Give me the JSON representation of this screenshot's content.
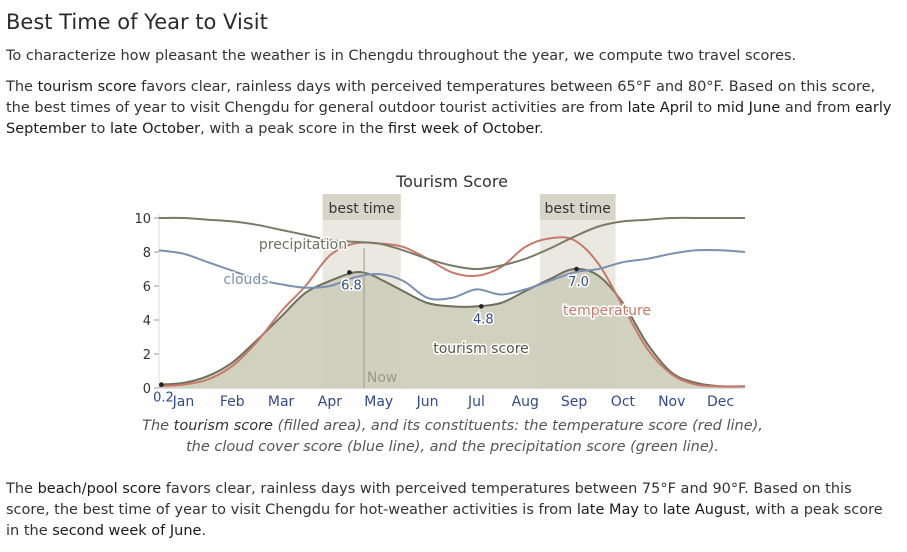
{
  "section": {
    "title": "Best Time of Year to Visit",
    "intro": "To characterize how pleasant the weather is in Chengdu throughout the year, we compute two travel scores.",
    "tourism_paragraph": {
      "t1": "The ",
      "k1": "tourism score",
      "t2": " favors clear, rainless days with perceived temperatures between 65°F and 80°F. Based on this score, the best times of year to visit Chengdu for general outdoor tourist activities are from ",
      "k2": "late April",
      "t3": " to ",
      "k3": "mid June",
      "t4": " and from ",
      "k4": "early September",
      "t5": " to ",
      "k5": "late October",
      "t6": ", with a peak score in the ",
      "k6": "first week of October",
      "t7": "."
    },
    "caption": {
      "c1": "The ",
      "c2": "tourism score",
      "c3": " (filled area), and its constituents: the temperature score (red line), the cloud cover score (blue line), and the precipitation score (green line)."
    },
    "beach_paragraph": {
      "t1": "The ",
      "k1": "beach/pool score",
      "t2": " favors clear, rainless days with perceived temperatures between 75°F and 90°F. Based on this score, the best time of year to visit Chengdu for hot-weather activities is from ",
      "k2": "late May",
      "t3": " to ",
      "k3": "late August",
      "t4": ", with a peak score in the ",
      "k4": "second week of June",
      "t5": "."
    }
  },
  "chart_data": {
    "type": "area",
    "title": "Tourism Score",
    "xlabel": "",
    "ylabel": "",
    "ylim": [
      0,
      10
    ],
    "yticks": [
      "0",
      "2",
      "4",
      "6",
      "8",
      "10"
    ],
    "months": [
      "Jan",
      "Feb",
      "Mar",
      "Apr",
      "May",
      "Jun",
      "Jul",
      "Aug",
      "Sep",
      "Oct",
      "Nov",
      "Dec"
    ],
    "x_unit": "month (1 = Jan 1, 13 = Dec 31)",
    "best_time_label": "best time",
    "best_time_ranges": [
      [
        4.35,
        5.95
      ],
      [
        8.8,
        10.35
      ]
    ],
    "now_label": "Now",
    "now_x": 5.2,
    "series": [
      {
        "name": "tourism score",
        "role": "filled area",
        "color": "#cfcfbc",
        "x": [
          1,
          1.5,
          2,
          2.5,
          3,
          3.5,
          4,
          4.5,
          5,
          5.3,
          5.6,
          6,
          6.5,
          7,
          7.5,
          8,
          8.5,
          9,
          9.5,
          10,
          10.5,
          11,
          11.5,
          12,
          12.5,
          13
        ],
        "values": [
          0.2,
          0.3,
          0.7,
          1.5,
          2.8,
          4.2,
          5.6,
          6.3,
          6.8,
          6.7,
          6.3,
          5.7,
          5.0,
          4.8,
          4.8,
          5.0,
          5.7,
          6.4,
          7.0,
          6.6,
          5.0,
          2.6,
          0.9,
          0.3,
          0.1,
          0.1
        ]
      },
      {
        "name": "temperature",
        "color": "#c8796a",
        "x": [
          1,
          1.5,
          2,
          2.5,
          3,
          3.5,
          4,
          4.5,
          5,
          5.5,
          6,
          6.5,
          7,
          7.5,
          8,
          8.5,
          9,
          9.5,
          10,
          10.5,
          11,
          11.5,
          12,
          12.5,
          13
        ],
        "values": [
          0.1,
          0.2,
          0.5,
          1.3,
          2.7,
          4.5,
          6.0,
          7.8,
          8.5,
          8.5,
          8.3,
          7.6,
          6.8,
          6.6,
          7.1,
          8.3,
          8.8,
          8.7,
          7.3,
          4.8,
          2.3,
          0.8,
          0.2,
          0.1,
          0.1
        ]
      },
      {
        "name": "clouds",
        "color": "#7a90b0",
        "x": [
          1,
          1.5,
          2,
          2.5,
          3,
          3.5,
          4,
          4.5,
          5,
          5.5,
          6,
          6.5,
          7,
          7.5,
          8,
          8.5,
          9,
          9.5,
          10,
          10.5,
          11,
          11.5,
          12,
          12.5,
          13
        ],
        "values": [
          8.1,
          7.9,
          7.4,
          6.9,
          6.4,
          6.1,
          5.9,
          6.0,
          6.5,
          6.7,
          6.3,
          5.3,
          5.3,
          5.8,
          5.5,
          5.8,
          6.3,
          6.8,
          7.0,
          7.4,
          7.6,
          7.9,
          8.1,
          8.1,
          8.0
        ]
      },
      {
        "name": "precipitation",
        "color": "#7a7a66",
        "x": [
          1,
          1.5,
          2,
          2.5,
          3,
          3.5,
          4,
          4.5,
          5,
          5.5,
          6,
          6.5,
          7,
          7.5,
          8,
          8.5,
          9,
          9.5,
          10,
          10.5,
          11,
          11.5,
          12,
          12.5,
          13
        ],
        "values": [
          10.0,
          10.0,
          9.9,
          9.8,
          9.6,
          9.3,
          9.0,
          8.7,
          8.6,
          8.5,
          8.1,
          7.6,
          7.2,
          7.0,
          7.2,
          7.6,
          8.2,
          8.9,
          9.5,
          9.8,
          9.9,
          10.0,
          10.0,
          10.0,
          10.0
        ]
      }
    ],
    "point_labels": [
      {
        "label": "0.2",
        "x": 1.05,
        "y": 0.2
      },
      {
        "label": "6.8",
        "x": 4.9,
        "y": 6.8
      },
      {
        "label": "4.8",
        "x": 7.6,
        "y": 4.8
      },
      {
        "label": "7.0",
        "x": 9.55,
        "y": 7.0
      }
    ],
    "legend": "inline labels",
    "grid": false
  }
}
